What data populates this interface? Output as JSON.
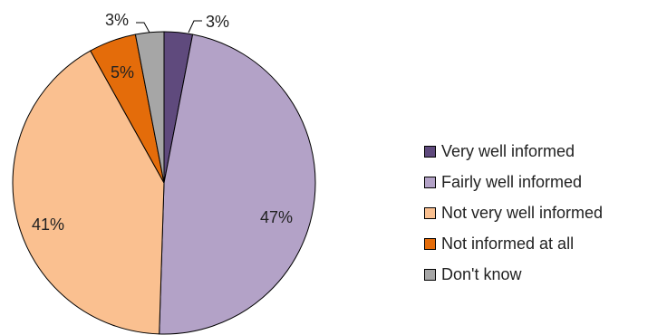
{
  "chart_data": {
    "type": "pie",
    "title": "",
    "categories": [
      "Very well informed",
      "Fairly well informed",
      "Not very well informed",
      "Not informed at all",
      "Don't know"
    ],
    "values": [
      3,
      47,
      41,
      5,
      3
    ],
    "labels": [
      "3%",
      "47%",
      "41%",
      "5%",
      "3%"
    ],
    "colors": [
      "#5f4a7d",
      "#b3a2c7",
      "#fac090",
      "#e46c0a",
      "#a6a6a6"
    ],
    "start_angle_deg": 0,
    "direction": "clockwise",
    "legend_position": "right"
  }
}
